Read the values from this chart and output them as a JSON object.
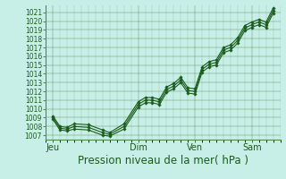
{
  "title": "",
  "xlabel": "Pression niveau de la mer( hPa )",
  "background_color": "#c8eee8",
  "plot_bg_color": "#c8eee8",
  "grid_color": "#4d8b4d",
  "line_color": "#1a5c1a",
  "ylim": [
    1006.5,
    1021.8
  ],
  "yticks": [
    1007,
    1008,
    1009,
    1010,
    1011,
    1012,
    1013,
    1014,
    1015,
    1016,
    1017,
    1018,
    1019,
    1020,
    1021
  ],
  "xtick_labels": [
    "Jeu",
    "Dim",
    "Ven",
    "Sam"
  ],
  "xtick_positions": [
    0,
    36,
    60,
    84
  ],
  "xlim": [
    -3,
    96
  ],
  "series_mid": [
    [
      0,
      1009.0
    ],
    [
      3,
      1007.8
    ],
    [
      6,
      1007.7
    ],
    [
      9,
      1008.0
    ],
    [
      15,
      1007.9
    ],
    [
      21,
      1007.3
    ],
    [
      24,
      1007.1
    ],
    [
      30,
      1008.0
    ],
    [
      36,
      1010.5
    ],
    [
      39,
      1011.0
    ],
    [
      42,
      1011.0
    ],
    [
      45,
      1010.8
    ],
    [
      48,
      1012.2
    ],
    [
      51,
      1012.6
    ],
    [
      54,
      1013.3
    ],
    [
      57,
      1012.1
    ],
    [
      60,
      1012.0
    ],
    [
      63,
      1014.5
    ],
    [
      66,
      1015.1
    ],
    [
      69,
      1015.3
    ],
    [
      72,
      1016.7
    ],
    [
      75,
      1017.0
    ],
    [
      78,
      1017.8
    ],
    [
      81,
      1019.2
    ],
    [
      84,
      1019.6
    ],
    [
      87,
      1019.9
    ],
    [
      90,
      1019.6
    ],
    [
      93,
      1021.2
    ]
  ],
  "series_hi": [
    [
      0,
      1009.2
    ],
    [
      3,
      1008.0
    ],
    [
      6,
      1007.9
    ],
    [
      9,
      1008.3
    ],
    [
      15,
      1008.2
    ],
    [
      21,
      1007.6
    ],
    [
      24,
      1007.3
    ],
    [
      30,
      1008.3
    ],
    [
      36,
      1010.8
    ],
    [
      39,
      1011.3
    ],
    [
      42,
      1011.3
    ],
    [
      45,
      1011.1
    ],
    [
      48,
      1012.5
    ],
    [
      51,
      1012.9
    ],
    [
      54,
      1013.6
    ],
    [
      57,
      1012.4
    ],
    [
      60,
      1012.3
    ],
    [
      63,
      1014.8
    ],
    [
      66,
      1015.4
    ],
    [
      69,
      1015.6
    ],
    [
      72,
      1017.0
    ],
    [
      75,
      1017.3
    ],
    [
      78,
      1018.1
    ],
    [
      81,
      1019.5
    ],
    [
      84,
      1019.9
    ],
    [
      87,
      1020.2
    ],
    [
      90,
      1019.9
    ],
    [
      93,
      1021.5
    ]
  ],
  "series_lo": [
    [
      0,
      1008.8
    ],
    [
      3,
      1007.6
    ],
    [
      6,
      1007.5
    ],
    [
      9,
      1007.7
    ],
    [
      15,
      1007.6
    ],
    [
      21,
      1007.0
    ],
    [
      24,
      1006.9
    ],
    [
      30,
      1007.7
    ],
    [
      36,
      1010.2
    ],
    [
      39,
      1010.7
    ],
    [
      42,
      1010.7
    ],
    [
      45,
      1010.5
    ],
    [
      48,
      1011.9
    ],
    [
      51,
      1012.3
    ],
    [
      54,
      1013.0
    ],
    [
      57,
      1011.8
    ],
    [
      60,
      1011.7
    ],
    [
      63,
      1014.2
    ],
    [
      66,
      1014.8
    ],
    [
      69,
      1015.0
    ],
    [
      72,
      1016.4
    ],
    [
      75,
      1016.7
    ],
    [
      78,
      1017.5
    ],
    [
      81,
      1018.9
    ],
    [
      84,
      1019.3
    ],
    [
      87,
      1019.6
    ],
    [
      90,
      1019.3
    ],
    [
      93,
      1020.9
    ]
  ],
  "xlabel_fontsize": 8.5,
  "ytick_fontsize": 5.5,
  "xtick_fontsize": 7
}
